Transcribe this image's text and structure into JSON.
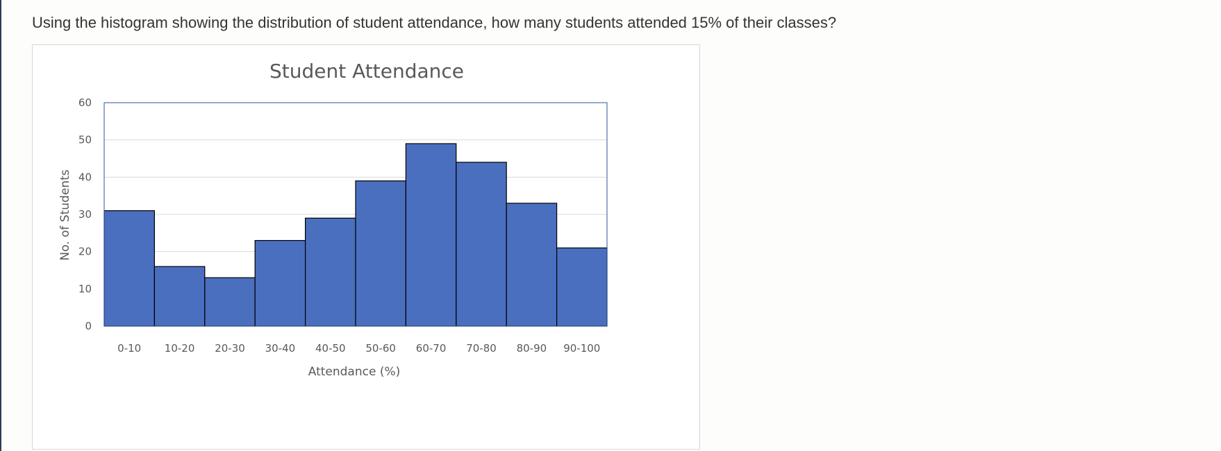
{
  "question": "Using the histogram showing the distribution of student attendance, how many students attended 15% of their classes?",
  "chart_data": {
    "type": "bar",
    "title": "Student Attendance",
    "xlabel": "Attendance (%)",
    "ylabel": "No. of Students",
    "categories": [
      "0-10",
      "10-20",
      "20-30",
      "30-40",
      "40-50",
      "50-60",
      "60-70",
      "70-80",
      "80-90",
      "90-100"
    ],
    "values": [
      31,
      16,
      13,
      23,
      29,
      39,
      49,
      44,
      33,
      21
    ],
    "ylim": [
      0,
      60
    ],
    "yticks": [
      0,
      10,
      20,
      30,
      40,
      50,
      60
    ],
    "grid": true,
    "legend": "none",
    "colors": {
      "bar": "#4a6fbf",
      "bar_edge": "#000000",
      "grid": "#d9d9d9",
      "plot_border": "#2f5597"
    }
  }
}
